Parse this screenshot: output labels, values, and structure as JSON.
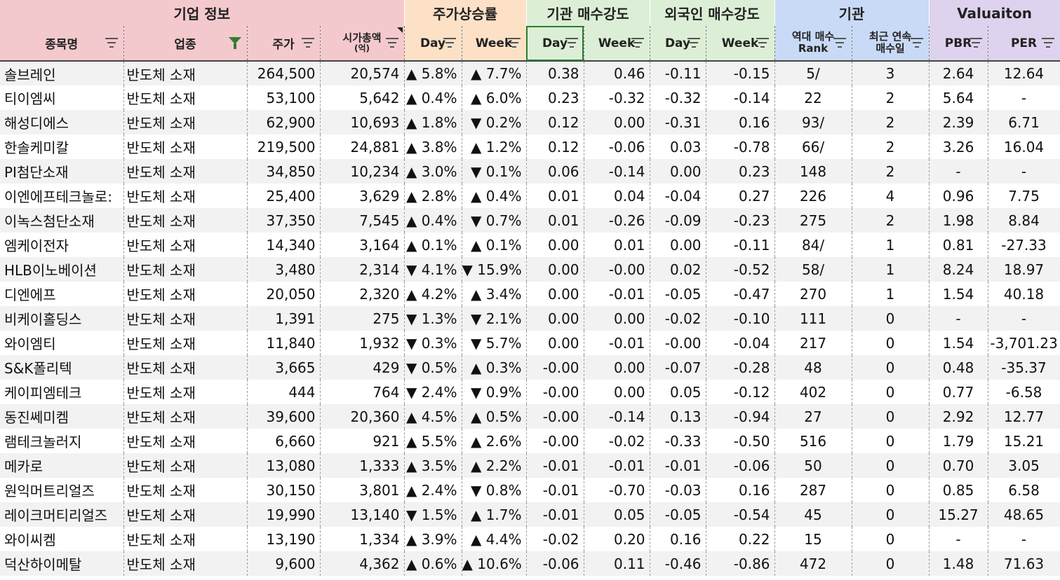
{
  "groups": [
    {
      "label": "기업 정보",
      "span": 4,
      "color": "pink"
    },
    {
      "label": "주가상승률",
      "span": 2,
      "color": "orange"
    },
    {
      "label": "기관 매수강도",
      "span": 2,
      "color": "green"
    },
    {
      "label": "외국인 매수강도",
      "span": 2,
      "color": "green"
    },
    {
      "label": "기관",
      "span": 2,
      "color": "blue"
    },
    {
      "label": "Valuaiton",
      "span": 2,
      "color": "purple"
    }
  ],
  "headers": {
    "name": "종목명",
    "industry": "업종",
    "price": "주가",
    "mcap": "시가총액",
    "mcap_unit": "(억)",
    "price_day": "Day",
    "price_week": "Week",
    "inst_day": "Day",
    "inst_week": "Week",
    "foreign_day": "Day",
    "foreign_week": "Week",
    "rank_l1": "역대 매수",
    "rank_l2": "Rank",
    "streak_l1": "최근 연속",
    "streak_l2": "매수일",
    "pbr": "PBR",
    "per": "PER"
  },
  "colors": {
    "up": "#e60000",
    "down": "#0018d6",
    "filter_active": "#2e7d32"
  },
  "rows": [
    {
      "name": "솔브레인",
      "industry": "반도체 소재",
      "price": "264,500",
      "mcap": "20,574",
      "pd": "5.8%",
      "pd_dir": "up",
      "pw": "7.7%",
      "pw_dir": "up",
      "id": "0.38",
      "iw": "0.46",
      "fd": "-0.11",
      "fw": "-0.15",
      "rank": "5/",
      "streak": "3",
      "pbr": "2.64",
      "per": "12.64"
    },
    {
      "name": "티이엠씨",
      "industry": "반도체 소재",
      "price": "53,100",
      "mcap": "5,642",
      "pd": "0.4%",
      "pd_dir": "up",
      "pw": "6.0%",
      "pw_dir": "up",
      "id": "0.23",
      "iw": "-0.32",
      "fd": "-0.32",
      "fw": "-0.14",
      "rank": "22",
      "streak": "2",
      "pbr": "5.64",
      "per": "-"
    },
    {
      "name": "해성디에스",
      "industry": "반도체 소재",
      "price": "62,900",
      "mcap": "10,693",
      "pd": "1.8%",
      "pd_dir": "up",
      "pw": "0.2%",
      "pw_dir": "down",
      "id": "0.12",
      "iw": "0.00",
      "fd": "-0.31",
      "fw": "0.16",
      "rank": "93/",
      "streak": "2",
      "pbr": "2.39",
      "per": "6.71"
    },
    {
      "name": "한솔케미칼",
      "industry": "반도체 소재",
      "price": "219,500",
      "mcap": "24,881",
      "pd": "3.8%",
      "pd_dir": "up",
      "pw": "1.2%",
      "pw_dir": "up",
      "id": "0.12",
      "iw": "-0.06",
      "fd": "0.03",
      "fw": "-0.78",
      "rank": "66/",
      "streak": "2",
      "pbr": "3.26",
      "per": "16.04"
    },
    {
      "name": "PI첨단소재",
      "industry": "반도체 소재",
      "price": "34,850",
      "mcap": "10,234",
      "pd": "3.0%",
      "pd_dir": "up",
      "pw": "0.1%",
      "pw_dir": "down",
      "id": "0.06",
      "iw": "-0.14",
      "fd": "0.00",
      "fw": "0.23",
      "rank": "148",
      "streak": "2",
      "pbr": "-",
      "per": "-"
    },
    {
      "name": "이엔에프테크놀로:",
      "industry": "반도체 소재",
      "price": "25,400",
      "mcap": "3,629",
      "pd": "2.8%",
      "pd_dir": "up",
      "pw": "0.4%",
      "pw_dir": "up",
      "id": "0.01",
      "iw": "0.04",
      "fd": "-0.04",
      "fw": "0.27",
      "rank": "226",
      "streak": "4",
      "pbr": "0.96",
      "per": "7.75"
    },
    {
      "name": "이녹스첨단소재",
      "industry": "반도체 소재",
      "price": "37,350",
      "mcap": "7,545",
      "pd": "0.4%",
      "pd_dir": "up",
      "pw": "0.7%",
      "pw_dir": "down",
      "id": "0.01",
      "iw": "-0.26",
      "fd": "-0.09",
      "fw": "-0.23",
      "rank": "275",
      "streak": "2",
      "pbr": "1.98",
      "per": "8.84"
    },
    {
      "name": "엠케이전자",
      "industry": "반도체 소재",
      "price": "14,340",
      "mcap": "3,164",
      "pd": "0.1%",
      "pd_dir": "up",
      "pw": "0.1%",
      "pw_dir": "up",
      "id": "0.00",
      "iw": "0.01",
      "fd": "0.00",
      "fw": "-0.11",
      "rank": "84/",
      "streak": "1",
      "pbr": "0.81",
      "per": "-27.33"
    },
    {
      "name": "HLB이노베이션",
      "industry": "반도체 소재",
      "price": "3,480",
      "mcap": "2,314",
      "pd": "4.1%",
      "pd_dir": "down",
      "pw": "15.9%",
      "pw_dir": "down",
      "id": "0.00",
      "iw": "-0.00",
      "fd": "0.02",
      "fw": "-0.52",
      "rank": "58/",
      "streak": "1",
      "pbr": "8.24",
      "per": "18.97"
    },
    {
      "name": "디엔에프",
      "industry": "반도체 소재",
      "price": "20,050",
      "mcap": "2,320",
      "pd": "4.2%",
      "pd_dir": "up",
      "pw": "3.4%",
      "pw_dir": "up",
      "id": "0.00",
      "iw": "-0.01",
      "fd": "-0.05",
      "fw": "-0.47",
      "rank": "270",
      "streak": "1",
      "pbr": "1.54",
      "per": "40.18"
    },
    {
      "name": "비케이홀딩스",
      "industry": "반도체 소재",
      "price": "1,391",
      "mcap": "275",
      "pd": "1.3%",
      "pd_dir": "down",
      "pw": "2.1%",
      "pw_dir": "down",
      "id": "0.00",
      "iw": "0.00",
      "fd": "-0.02",
      "fw": "-0.10",
      "rank": "111",
      "streak": "0",
      "pbr": "-",
      "per": "-"
    },
    {
      "name": "와이엠티",
      "industry": "반도체 소재",
      "price": "11,840",
      "mcap": "1,932",
      "pd": "0.3%",
      "pd_dir": "down",
      "pw": "5.7%",
      "pw_dir": "down",
      "id": "0.00",
      "iw": "-0.01",
      "fd": "-0.00",
      "fw": "-0.04",
      "rank": "217",
      "streak": "0",
      "pbr": "1.54",
      "per": "-3,701.23"
    },
    {
      "name": "S&K폴리텍",
      "industry": "반도체 소재",
      "price": "3,665",
      "mcap": "429",
      "pd": "0.5%",
      "pd_dir": "down",
      "pw": "0.3%",
      "pw_dir": "up",
      "id": "-0.00",
      "iw": "0.00",
      "fd": "-0.07",
      "fw": "-0.28",
      "rank": "48",
      "streak": "0",
      "pbr": "0.48",
      "per": "-35.37"
    },
    {
      "name": "케이피엠테크",
      "industry": "반도체 소재",
      "price": "444",
      "mcap": "764",
      "pd": "2.4%",
      "pd_dir": "down",
      "pw": "0.9%",
      "pw_dir": "down",
      "id": "-0.00",
      "iw": "0.00",
      "fd": "0.05",
      "fw": "-0.12",
      "rank": "402",
      "streak": "0",
      "pbr": "0.77",
      "per": "-6.58"
    },
    {
      "name": "동진쎄미켐",
      "industry": "반도체 소재",
      "price": "39,600",
      "mcap": "20,360",
      "pd": "4.5%",
      "pd_dir": "up",
      "pw": "0.5%",
      "pw_dir": "up",
      "id": "-0.00",
      "iw": "-0.14",
      "fd": "0.13",
      "fw": "-0.94",
      "rank": "27",
      "streak": "0",
      "pbr": "2.92",
      "per": "12.77"
    },
    {
      "name": "램테크놀러지",
      "industry": "반도체 소재",
      "price": "6,660",
      "mcap": "921",
      "pd": "5.5%",
      "pd_dir": "up",
      "pw": "2.6%",
      "pw_dir": "up",
      "id": "-0.00",
      "iw": "-0.02",
      "fd": "-0.33",
      "fw": "-0.50",
      "rank": "516",
      "streak": "0",
      "pbr": "1.79",
      "per": "15.21"
    },
    {
      "name": "메카로",
      "industry": "반도체 소재",
      "price": "13,080",
      "mcap": "1,333",
      "pd": "3.5%",
      "pd_dir": "up",
      "pw": "2.2%",
      "pw_dir": "up",
      "id": "-0.01",
      "iw": "-0.01",
      "fd": "-0.01",
      "fw": "-0.06",
      "rank": "50",
      "streak": "0",
      "pbr": "0.70",
      "per": "3.05"
    },
    {
      "name": "원익머트리얼즈",
      "industry": "반도체 소재",
      "price": "30,150",
      "mcap": "3,801",
      "pd": "2.4%",
      "pd_dir": "up",
      "pw": "0.8%",
      "pw_dir": "down",
      "id": "-0.01",
      "iw": "-0.70",
      "fd": "-0.03",
      "fw": "0.16",
      "rank": "287",
      "streak": "0",
      "pbr": "0.85",
      "per": "6.58"
    },
    {
      "name": "레이크머티리얼즈",
      "industry": "반도체 소재",
      "price": "19,990",
      "mcap": "13,140",
      "pd": "1.5%",
      "pd_dir": "down",
      "pw": "1.7%",
      "pw_dir": "up",
      "id": "-0.01",
      "iw": "0.05",
      "fd": "-0.05",
      "fw": "-0.54",
      "rank": "45",
      "streak": "0",
      "pbr": "15.27",
      "per": "48.65"
    },
    {
      "name": "와이씨켐",
      "industry": "반도체 소재",
      "price": "13,190",
      "mcap": "1,334",
      "pd": "3.9%",
      "pd_dir": "up",
      "pw": "4.4%",
      "pw_dir": "up",
      "id": "-0.02",
      "iw": "0.20",
      "fd": "0.16",
      "fw": "0.22",
      "rank": "15",
      "streak": "0",
      "pbr": "-",
      "per": "-"
    },
    {
      "name": "덕산하이메탈",
      "industry": "반도체 소재",
      "price": "9,600",
      "mcap": "4,362",
      "pd": "0.6%",
      "pd_dir": "up",
      "pw": "10.6%",
      "pw_dir": "up",
      "id": "-0.06",
      "iw": "0.11",
      "fd": "-0.46",
      "fw": "-0.86",
      "rank": "472",
      "streak": "0",
      "pbr": "1.48",
      "per": "71.63"
    }
  ]
}
